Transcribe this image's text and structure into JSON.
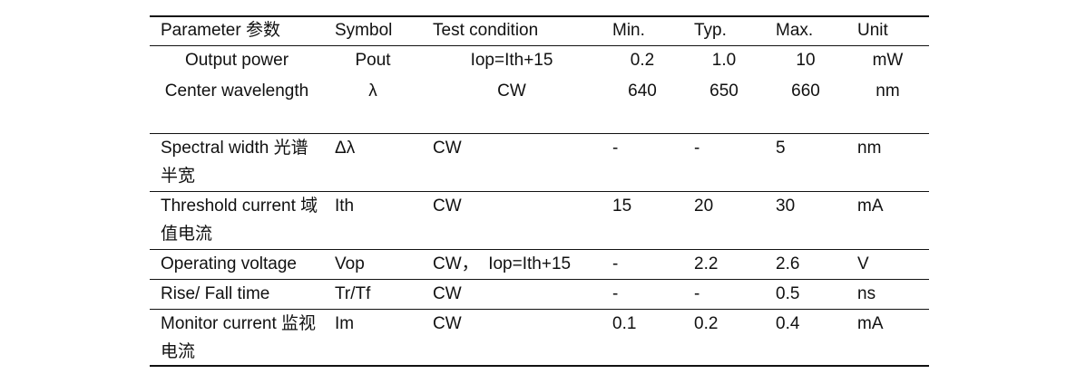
{
  "table": {
    "header": [
      "Parameter 参数",
      "Symbol",
      "Test condition",
      "Min.",
      "Typ.",
      "Max.",
      "Unit"
    ],
    "rows": [
      [
        "Output power",
        "Pout",
        "Iop=Ith+15",
        "0.2",
        "1.0",
        "10",
        "mW"
      ],
      [
        "Center wavelength",
        "λ",
        "CW",
        "640",
        "650",
        "660",
        "nm"
      ],
      [
        "Spectral width 光谱半宽",
        "Δλ",
        "CW",
        "-",
        "-",
        "5",
        "nm"
      ],
      [
        "Threshold current 域值电流",
        "Ith",
        "CW",
        "15",
        "20",
        "30",
        "mA"
      ],
      [
        "Operating voltage",
        "Vop",
        "CW，  Iop=Ith+15",
        "-",
        "2.2",
        "2.6",
        "V"
      ],
      [
        "Rise/ Fall time",
        "Tr/Tf",
        "CW",
        "-",
        "-",
        "0.5",
        "ns"
      ],
      [
        "Monitor current 监视电流",
        "Im",
        "CW",
        "0.1",
        "0.2",
        "0.4",
        "mA"
      ]
    ]
  }
}
